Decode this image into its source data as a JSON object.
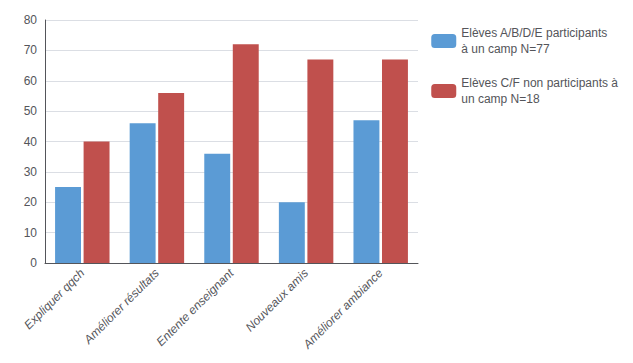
{
  "chart_data": {
    "type": "bar",
    "categories": [
      "Expliquer qqch",
      "Améliorer résultats",
      "Entente enseignant",
      "Nouveaux amis",
      "Améliorer ambiance"
    ],
    "series": [
      {
        "name": "Elèves A/B/D/E participants\nà un camp N=77",
        "color": "#5B9BD5",
        "values": [
          25,
          46,
          36,
          20,
          47
        ]
      },
      {
        "name": "Elèves C/F non participants à\nun camp N=18",
        "color": "#C0504D",
        "values": [
          40,
          56,
          72,
          67,
          67
        ]
      }
    ],
    "ylim": [
      0,
      80
    ],
    "yticks": [
      0,
      10,
      20,
      30,
      40,
      50,
      60,
      70,
      80
    ],
    "grid": true,
    "legend": "right"
  }
}
